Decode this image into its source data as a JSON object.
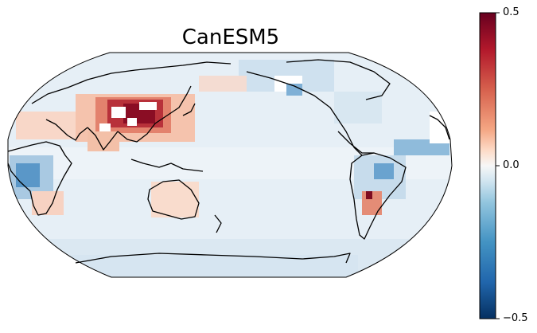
{
  "title": "CanESM5",
  "colorbar": {
    "colormap": "RdBu_r",
    "min": -0.5,
    "max": 0.5,
    "ticks": [
      {
        "value": 0.5,
        "label": "0.5"
      },
      {
        "value": 0.0,
        "label": "0.0"
      },
      {
        "value": -0.5,
        "label": "−0.5"
      }
    ],
    "colors": {
      "max": "#67001f",
      "high": "#d6604d",
      "mid_high": "#fddbc7",
      "zero": "#f7f7f7",
      "mid_low": "#d1e5f0",
      "low": "#4393c3",
      "min": "#053061"
    }
  },
  "map": {
    "projection": "Robinson, Pacific-centered",
    "coastline_color": "#000000",
    "ocean_background": "#e4eef6"
  }
}
